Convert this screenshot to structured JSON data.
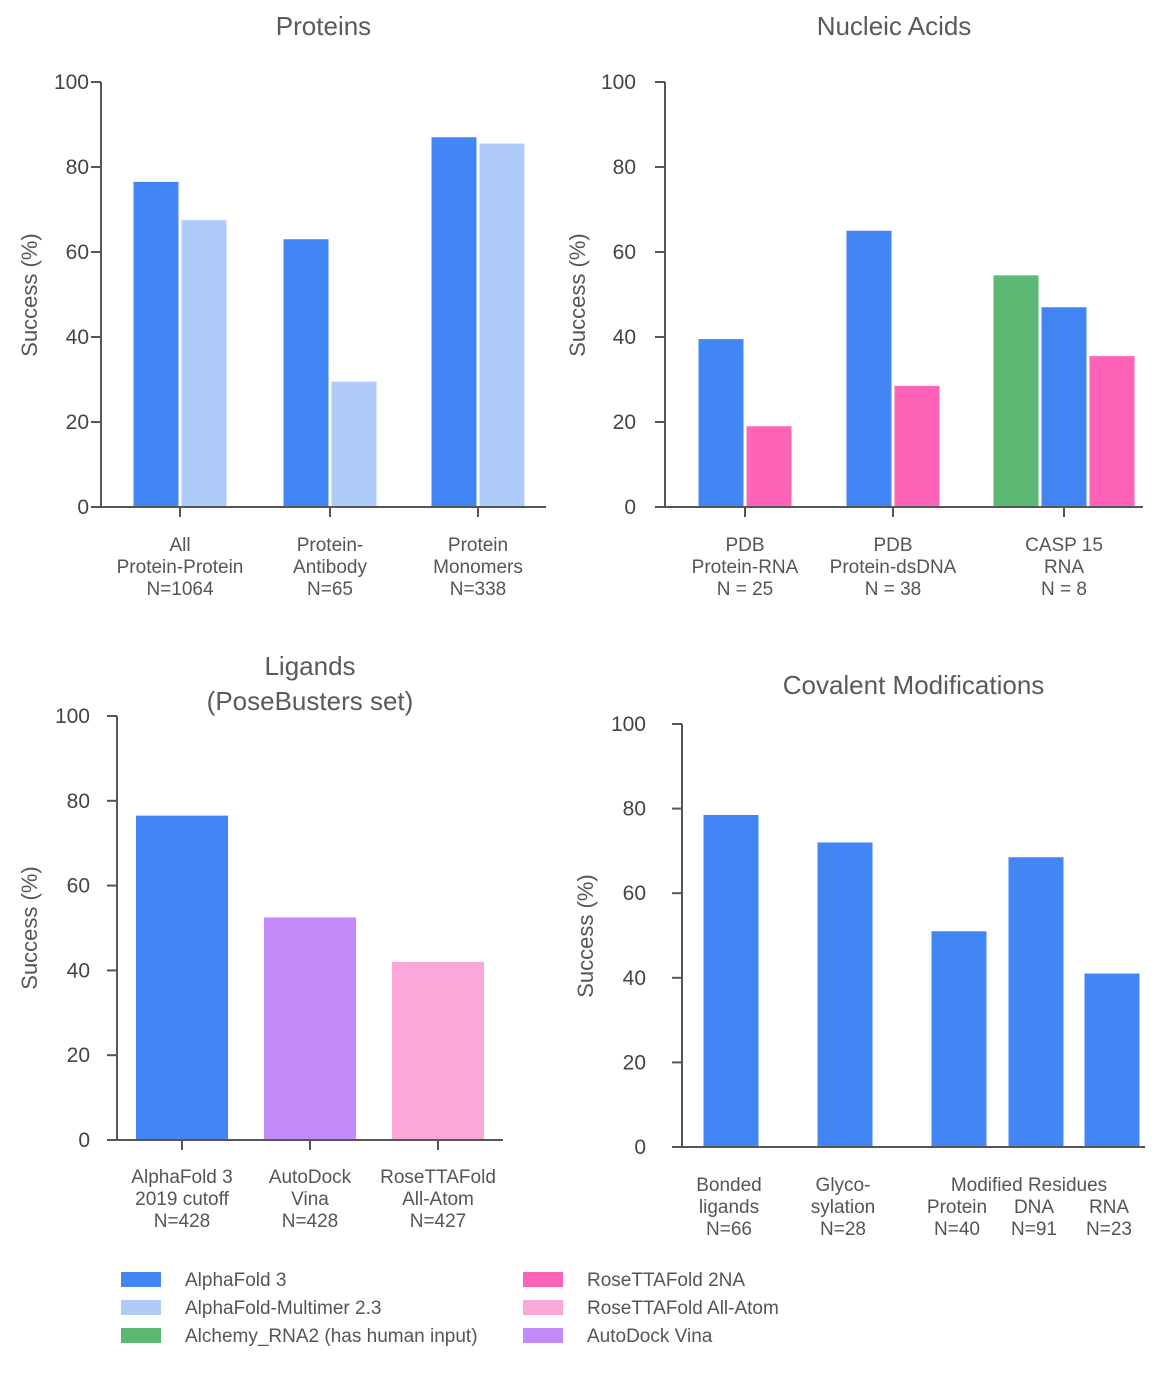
{
  "colors": {
    "alphafold3": "#4285f4",
    "alphafold_multimer": "#aecbfa",
    "alchemy": "#5bb974",
    "rosettafold_2na": "#ff63b8",
    "rosettafold_allatom": "#fba8d8",
    "autodock_vina": "#c58af9"
  },
  "chart_data": [
    {
      "type": "bar",
      "title": [
        "Proteins"
      ],
      "ylabel": "Success (%)",
      "ylim": [
        0,
        100
      ],
      "yticks": [
        "0",
        "20",
        "40",
        "60",
        "80",
        "100"
      ],
      "groups": [
        {
          "label": [
            "All",
            "Protein-Protein",
            "N=1064"
          ],
          "bars": [
            {
              "series": "AlphaFold 3",
              "value": 76.5
            },
            {
              "series": "AlphaFold-Multimer 2.3",
              "value": 67.5
            }
          ]
        },
        {
          "label": [
            "Protein-",
            "Antibody",
            "N=65"
          ],
          "bars": [
            {
              "series": "AlphaFold 3",
              "value": 63
            },
            {
              "series": "AlphaFold-Multimer 2.3",
              "value": 29.5
            }
          ]
        },
        {
          "label": [
            "Protein",
            "Monomers",
            "N=338"
          ],
          "bars": [
            {
              "series": "AlphaFold 3",
              "value": 87
            },
            {
              "series": "AlphaFold-Multimer 2.3",
              "value": 85.5
            }
          ]
        }
      ]
    },
    {
      "type": "bar",
      "title": [
        "Nucleic Acids"
      ],
      "ylabel": "Success (%)",
      "ylim": [
        0,
        100
      ],
      "yticks": [
        "0",
        "20",
        "40",
        "60",
        "80",
        "100"
      ],
      "groups": [
        {
          "label": [
            "PDB",
            "Protein-RNA",
            "N = 25"
          ],
          "bars": [
            {
              "series": "AlphaFold 3",
              "value": 39.5
            },
            {
              "series": "RoseTTAFold 2NA",
              "value": 19
            }
          ]
        },
        {
          "label": [
            "PDB",
            "Protein-dsDNA",
            "N = 38"
          ],
          "bars": [
            {
              "series": "AlphaFold 3",
              "value": 65
            },
            {
              "series": "RoseTTAFold 2NA",
              "value": 28.5
            }
          ]
        },
        {
          "label": [
            "CASP 15",
            "RNA",
            "N = 8"
          ],
          "bars": [
            {
              "series": "Alchemy_RNA2 (has human input)",
              "value": 54.5
            },
            {
              "series": "AlphaFold 3",
              "value": 47
            },
            {
              "series": "RoseTTAFold 2NA",
              "value": 35.5
            }
          ]
        }
      ]
    },
    {
      "type": "bar",
      "title": [
        "Ligands",
        "(PoseBusters set)"
      ],
      "ylabel": "Success (%)",
      "ylim": [
        0,
        100
      ],
      "yticks": [
        "0",
        "20",
        "40",
        "60",
        "80",
        "100"
      ],
      "groups": [
        {
          "label": [
            "AlphaFold 3",
            "2019 cutoff",
            "N=428"
          ],
          "bars": [
            {
              "series": "AlphaFold 3",
              "value": 76.5
            }
          ]
        },
        {
          "label": [
            "AutoDock",
            "Vina",
            "N=428"
          ],
          "bars": [
            {
              "series": "AutoDock Vina",
              "value": 52.5
            }
          ]
        },
        {
          "label": [
            "RoseTTAFold",
            "All-Atom",
            "N=427"
          ],
          "bars": [
            {
              "series": "RoseTTAFold All-Atom",
              "value": 42
            }
          ]
        }
      ]
    },
    {
      "type": "bar",
      "title": [
        "Covalent Modifications"
      ],
      "ylabel": "Success (%)",
      "ylim": [
        0,
        100
      ],
      "yticks": [
        "0",
        "20",
        "40",
        "60",
        "80",
        "100"
      ],
      "group_header": "Modified Residues",
      "groups": [
        {
          "label": [
            "Bonded",
            "ligands",
            "N=66"
          ],
          "bars": [
            {
              "series": "AlphaFold 3",
              "value": 78.5
            }
          ]
        },
        {
          "label": [
            "Glyco-",
            "sylation",
            "N=28"
          ],
          "bars": [
            {
              "series": "AlphaFold 3",
              "value": 72
            }
          ]
        },
        {
          "label": [
            "Protein",
            "N=40"
          ],
          "bars": [
            {
              "series": "AlphaFold 3",
              "value": 51
            }
          ]
        },
        {
          "label": [
            "DNA",
            "N=91"
          ],
          "bars": [
            {
              "series": "AlphaFold 3",
              "value": 68.5
            }
          ]
        },
        {
          "label": [
            "RNA",
            "N=23"
          ],
          "bars": [
            {
              "series": "AlphaFold 3",
              "value": 41
            }
          ]
        }
      ]
    }
  ],
  "legend": [
    {
      "name": "AlphaFold 3",
      "color": "#4285f4"
    },
    {
      "name": "AlphaFold-Multimer 2.3",
      "color": "#aecbfa"
    },
    {
      "name": "Alchemy_RNA2 (has human input)",
      "color": "#5bb974"
    },
    {
      "name": "RoseTTAFold 2NA",
      "color": "#ff63b8"
    },
    {
      "name": "RoseTTAFold All-Atom",
      "color": "#fba8d8"
    },
    {
      "name": "AutoDock Vina",
      "color": "#c58af9"
    }
  ]
}
